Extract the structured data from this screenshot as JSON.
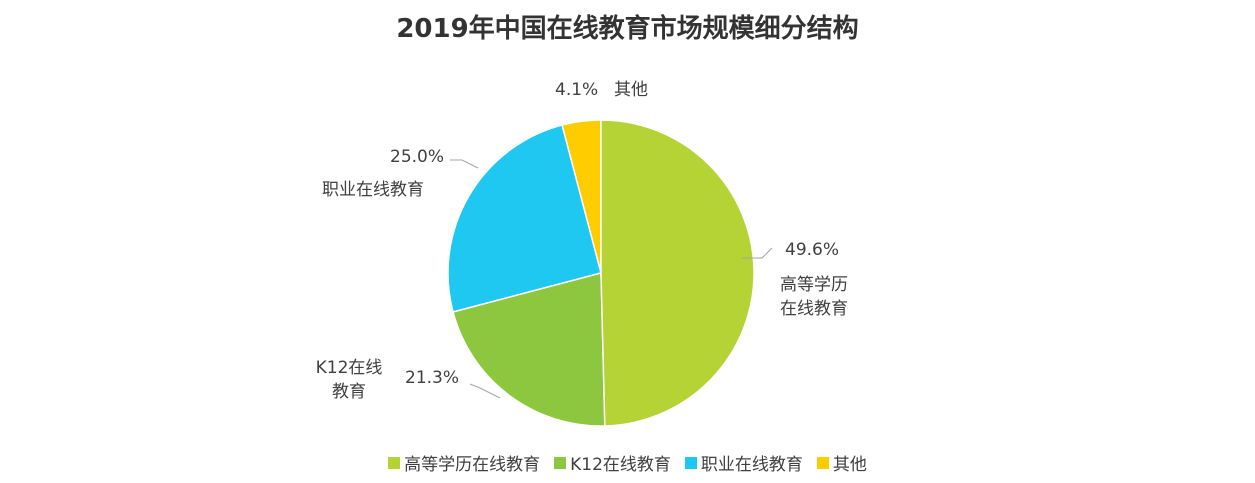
{
  "chart_data": {
    "type": "pie",
    "title": "2019年中国在线教育市场规模细分结构",
    "categories": [
      "高等学历在线教育",
      "K12在线教育",
      "职业在线教育",
      "其他"
    ],
    "values": [
      49.6,
      21.3,
      25.0,
      4.1
    ],
    "value_labels": [
      "49.6%",
      "21.3%",
      "25.0%",
      "4.1%"
    ],
    "colors": [
      "#b5d334",
      "#8dc63f",
      "#1fc8f0",
      "#ffcc00"
    ],
    "legend": "bottom"
  }
}
